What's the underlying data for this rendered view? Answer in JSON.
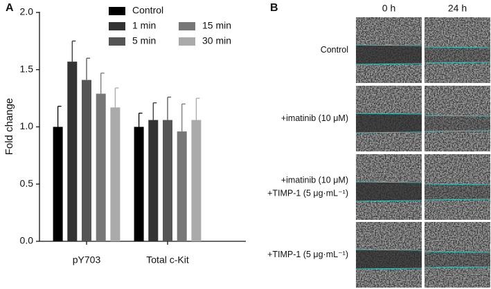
{
  "chart_data": {
    "type": "bar",
    "panel_label": "A",
    "y_label": "Fold change",
    "categories": [
      "pY703",
      "Total c-Kit"
    ],
    "series": [
      {
        "name": "Control",
        "color": "#000000",
        "values": [
          1.0,
          1.0
        ],
        "errors": [
          0.18,
          0.12
        ]
      },
      {
        "name": "1 min",
        "color": "#333333",
        "values": [
          1.57,
          1.06
        ],
        "errors": [
          0.18,
          0.15
        ]
      },
      {
        "name": "5 min",
        "color": "#555555",
        "values": [
          1.41,
          1.06
        ],
        "errors": [
          0.19,
          0.2
        ]
      },
      {
        "name": "15 min",
        "color": "#777777",
        "values": [
          1.29,
          0.96
        ],
        "errors": [
          0.18,
          0.24
        ]
      },
      {
        "name": "30 min",
        "color": "#aaaaaa",
        "values": [
          1.17,
          1.06
        ],
        "errors": [
          0.17,
          0.19
        ]
      }
    ],
    "ylim": [
      0,
      2
    ],
    "yticks": [
      {
        "value": 0,
        "label": "0.0"
      },
      0.5,
      {
        "value": 1,
        "label": "1.0"
      },
      1.5,
      {
        "value": 2,
        "label": "2.0"
      }
    ],
    "legend": "top"
  },
  "panel_b": {
    "label": "B",
    "columns": [
      "0 h",
      "24 h"
    ],
    "rows": [
      [
        "Control"
      ],
      [
        "+imatinib (10 μM)"
      ],
      [
        "+imatinib (10 μM)",
        "+TIMP-1 (5 μg·mL⁻¹)"
      ],
      [
        "+TIMP-1 (5 μg·mL⁻¹)"
      ]
    ]
  }
}
